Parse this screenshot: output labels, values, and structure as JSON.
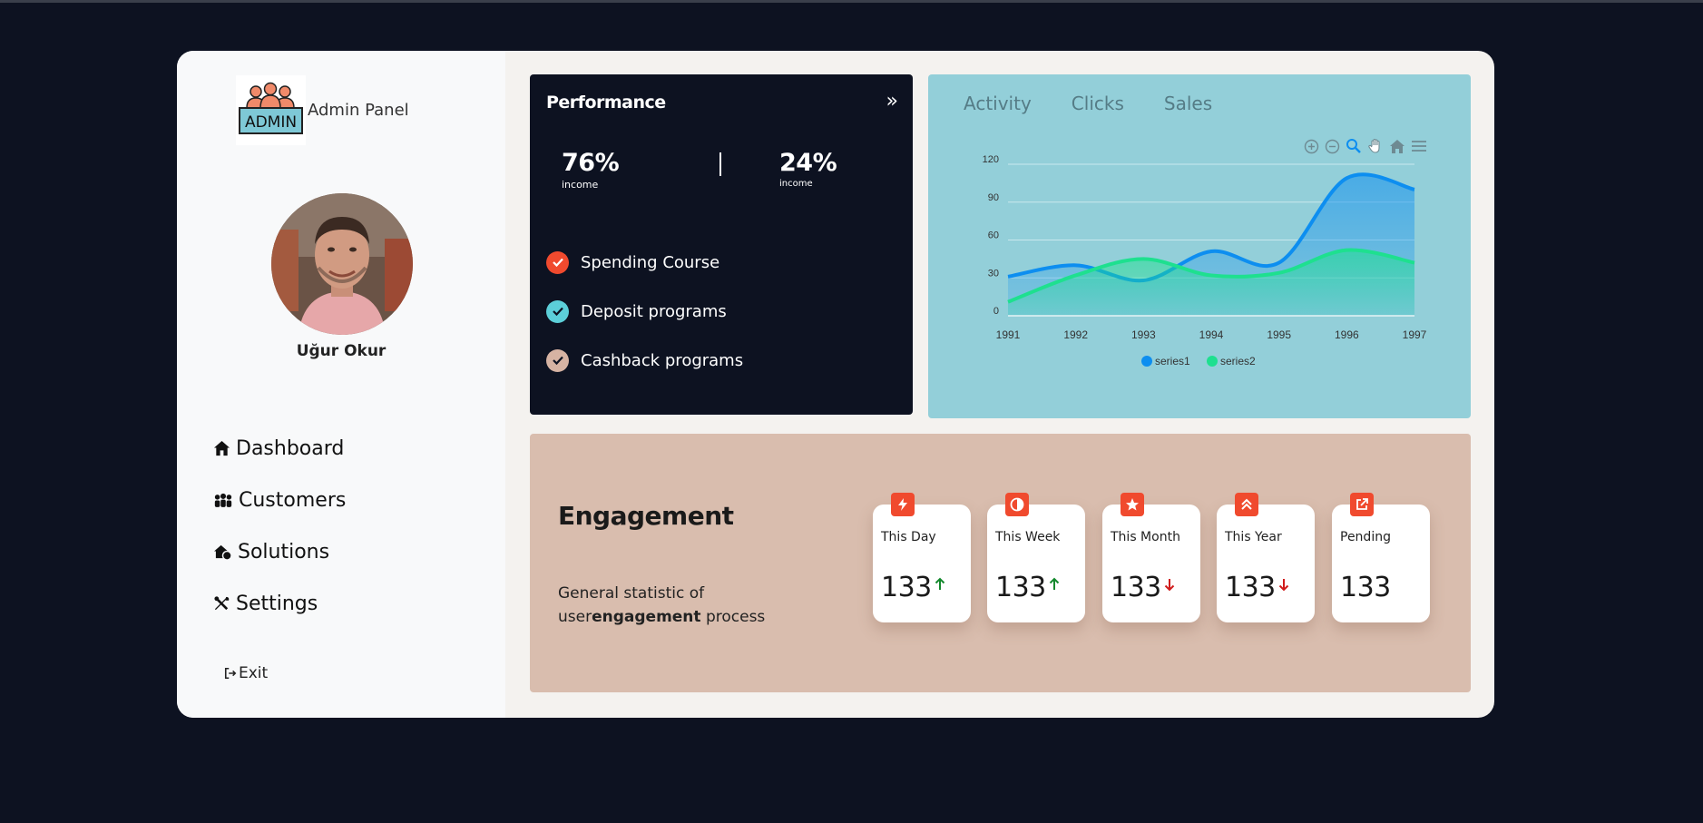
{
  "brand": {
    "title": "Admin Panel",
    "logo_text": "ADMIN"
  },
  "user": {
    "name": "Uğur Okur"
  },
  "nav": [
    {
      "label": "Dashboard",
      "icon": "home-icon"
    },
    {
      "label": "Customers",
      "icon": "users-icon"
    },
    {
      "label": "Solutions",
      "icon": "cloud-house-icon"
    },
    {
      "label": "Settings",
      "icon": "tools-icon"
    }
  ],
  "exit_label": "Exit",
  "performance": {
    "title": "Performance",
    "expand_icon": "double-chevron-right-icon",
    "stats": [
      {
        "value": "76%",
        "label": "income"
      },
      {
        "value": "24%",
        "label": "income"
      }
    ],
    "items": [
      {
        "label": "Spending Course",
        "color": "#f04a2e"
      },
      {
        "label": "Deposit programs",
        "color": "#5ccfd9"
      },
      {
        "label": "Cashback programs",
        "color": "#d6b3a3"
      }
    ]
  },
  "activity": {
    "tabs": [
      "Activity",
      "Clicks",
      "Sales"
    ],
    "toolbar": [
      "zoom-in-icon",
      "zoom-out-icon",
      "zoom-selection-icon",
      "pan-hand-icon",
      "reset-home-icon",
      "menu-icon"
    ]
  },
  "chart_data": {
    "type": "area",
    "x": [
      1991,
      1992,
      1993,
      1994,
      1995,
      1996,
      1997
    ],
    "ylim": [
      0,
      120
    ],
    "yticks": [
      0,
      30,
      60,
      90,
      120
    ],
    "series": [
      {
        "name": "series1",
        "values": [
          31,
          40,
          28,
          51,
          42,
          109,
          100
        ],
        "color": "#0d8ef0"
      },
      {
        "name": "series2",
        "values": [
          11,
          32,
          45,
          32,
          34,
          52,
          42
        ],
        "color": "#1ee08f"
      }
    ],
    "legend": "bottom-center",
    "grid": true
  },
  "engagement": {
    "title": "Engagement",
    "desc_pre": "General statistic of user",
    "desc_bold": "engagement",
    "desc_post": " process",
    "cards": [
      {
        "label": "This Day",
        "value": "133",
        "trend": "up",
        "icon": "bolt-icon"
      },
      {
        "label": "This Week",
        "value": "133",
        "trend": "up",
        "icon": "half-circle-icon"
      },
      {
        "label": "This Month",
        "value": "133",
        "trend": "down",
        "icon": "star-icon"
      },
      {
        "label": "This Year",
        "value": "133",
        "trend": "down",
        "icon": "double-chevron-up-icon"
      },
      {
        "label": "Pending",
        "value": "133",
        "trend": "none",
        "icon": "external-link-icon"
      }
    ]
  }
}
